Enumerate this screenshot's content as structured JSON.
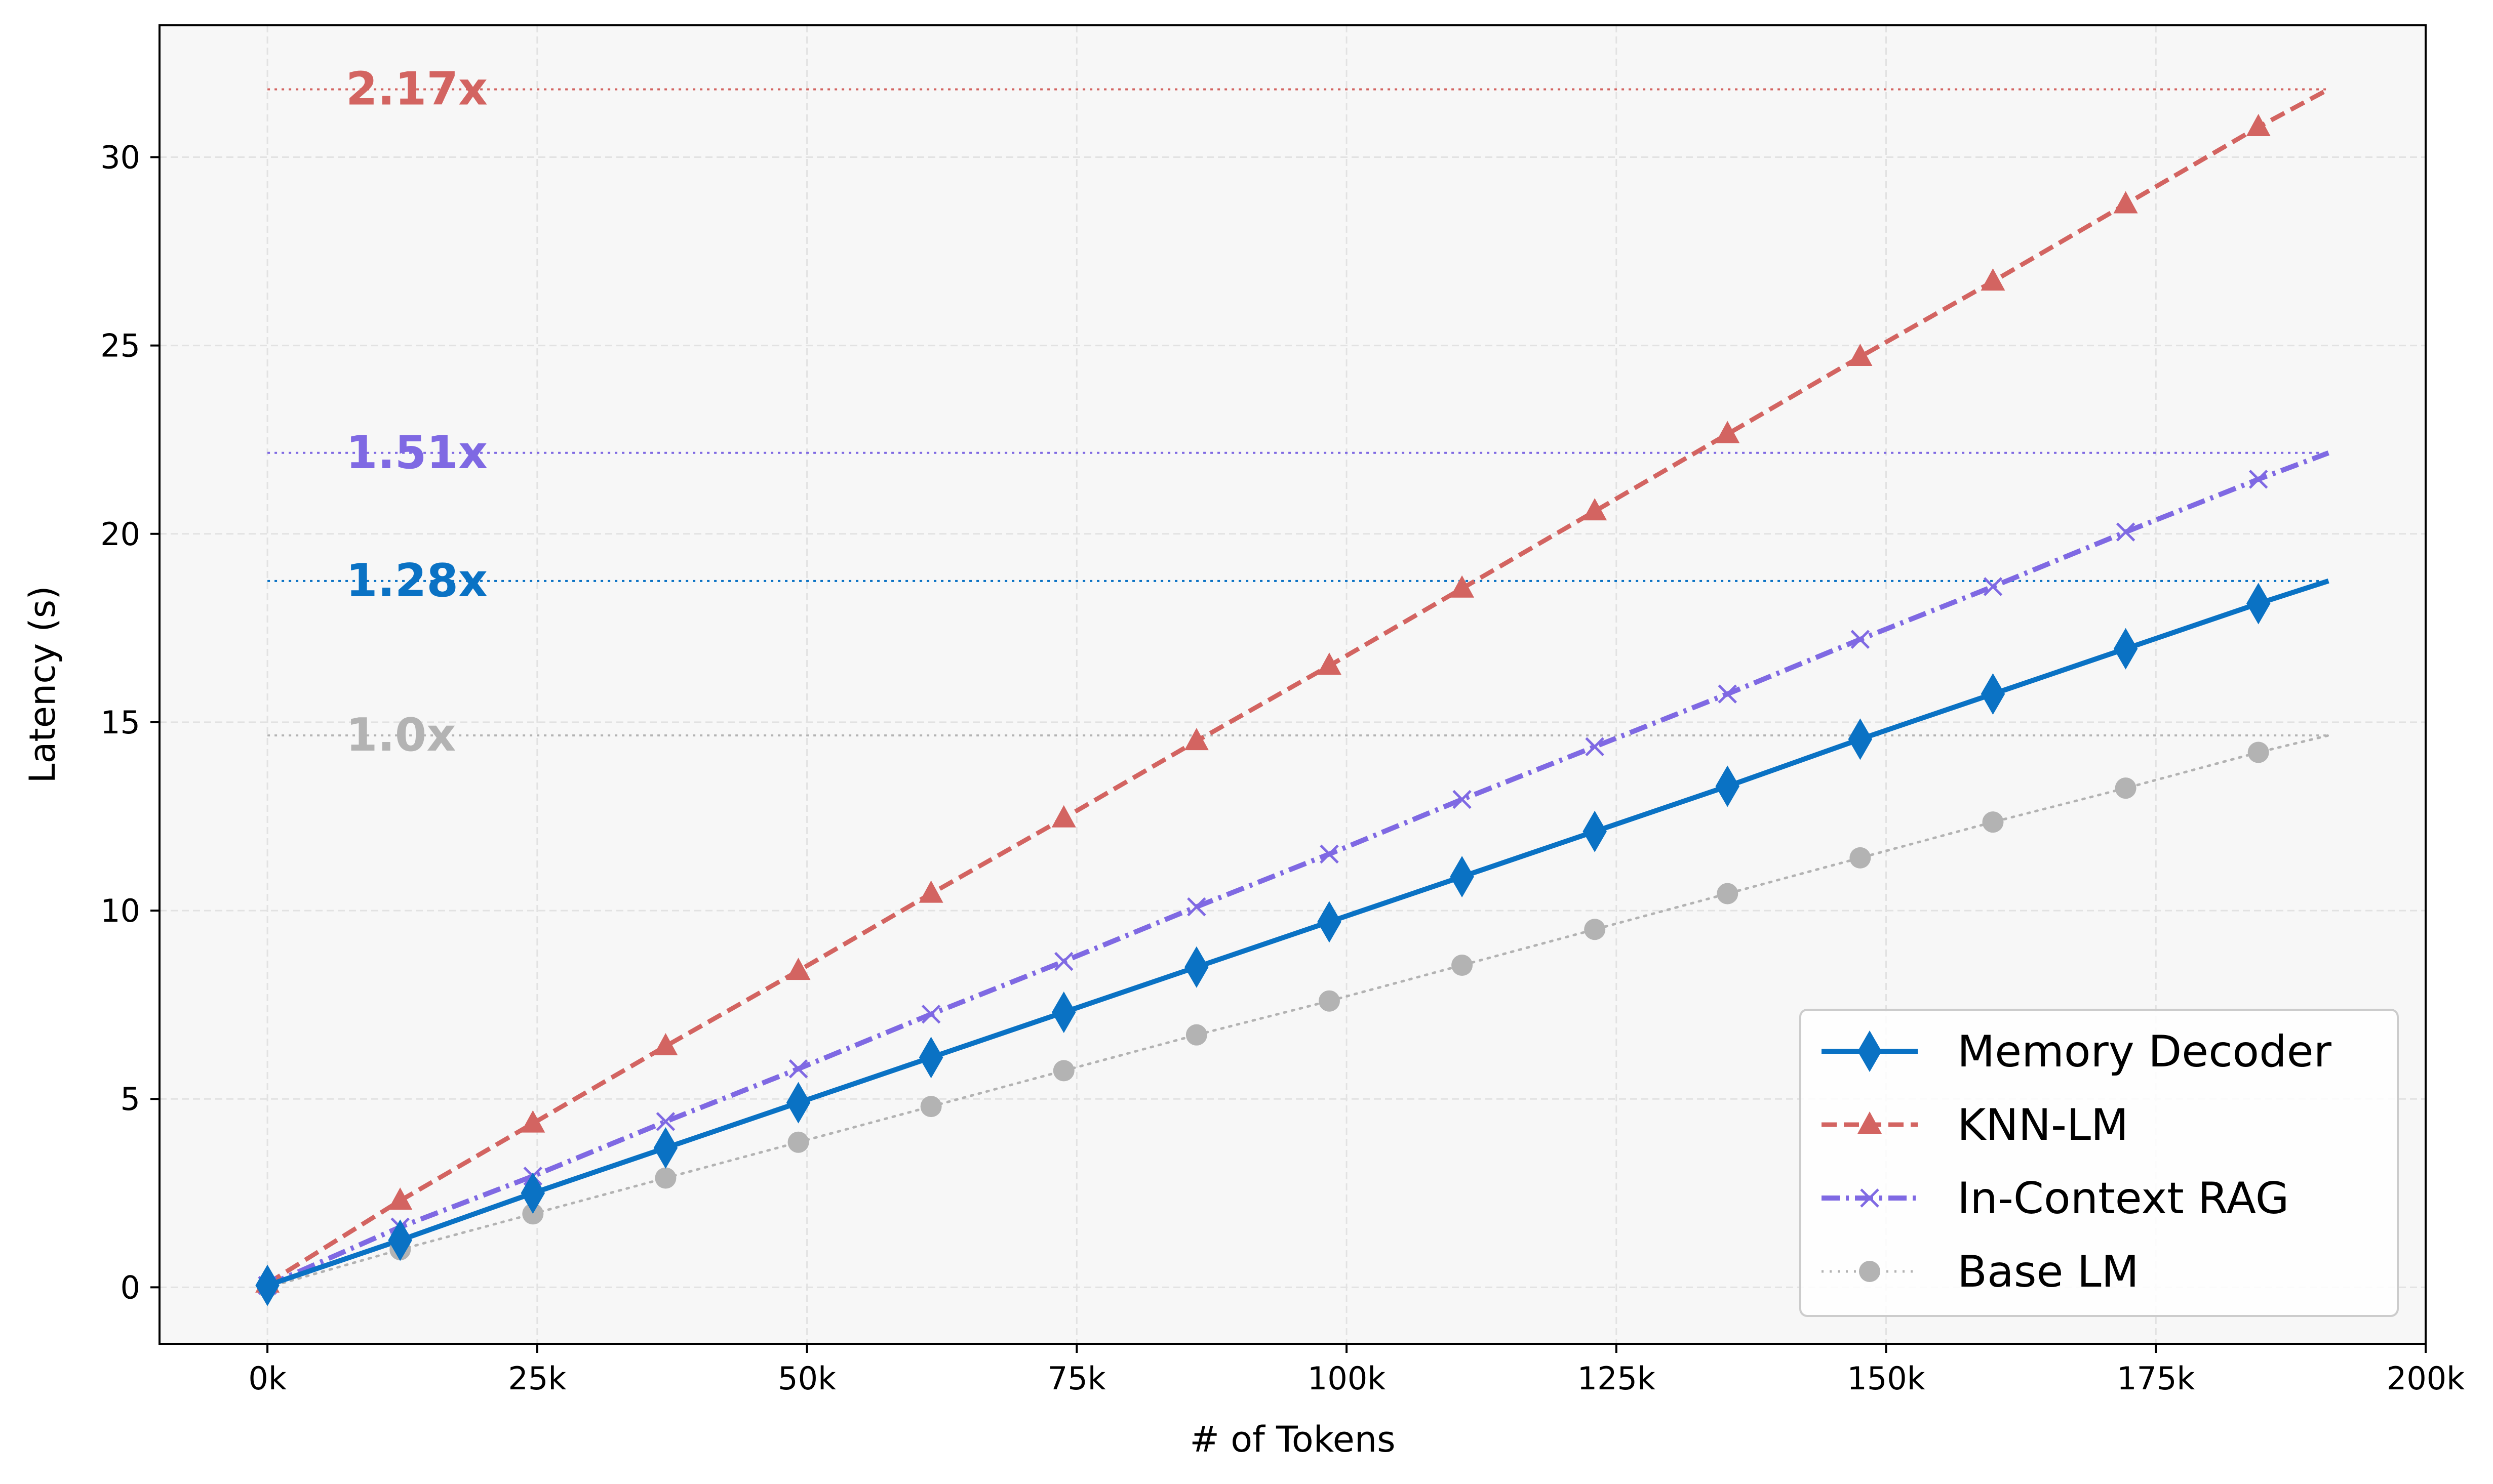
{
  "chart_data": {
    "type": "line",
    "title": "",
    "xlabel": "# of Tokens",
    "ylabel": "Latency (s)",
    "xlim": [
      -10000,
      200000
    ],
    "ylim": [
      -1.5,
      33.5
    ],
    "xticks": [
      0,
      25000,
      50000,
      75000,
      100000,
      125000,
      150000,
      175000,
      200000
    ],
    "xtick_labels": [
      "0k",
      "25k",
      "50k",
      "75k",
      "100k",
      "125k",
      "150k",
      "175k",
      "200k"
    ],
    "yticks": [
      0,
      5,
      10,
      15,
      20,
      25,
      30
    ],
    "ytick_labels": [
      "0",
      "5",
      "10",
      "15",
      "20",
      "25",
      "30"
    ],
    "grid": true,
    "legend_position": "bottom-right",
    "x": [
      0,
      12300,
      24600,
      36900,
      49200,
      61500,
      73800,
      86100,
      98400,
      110700,
      123000,
      135300,
      147600,
      159900,
      172200,
      184500
    ],
    "x_end": 191000,
    "series": [
      {
        "name": "Memory Decoder",
        "color": "#0a72c4",
        "line_style": "solid",
        "marker": "thin-diamond",
        "values": [
          0.05,
          1.25,
          2.5,
          3.7,
          4.9,
          6.1,
          7.3,
          8.5,
          9.7,
          10.9,
          12.1,
          13.3,
          14.55,
          15.75,
          16.95,
          18.15
        ],
        "end_value": 18.75
      },
      {
        "name": "KNN-LM",
        "color": "#d36461",
        "line_style": "dashed",
        "marker": "triangle",
        "values": [
          0.1,
          2.3,
          4.35,
          6.4,
          8.4,
          10.45,
          12.45,
          14.5,
          16.5,
          18.55,
          20.6,
          22.65,
          24.7,
          26.7,
          28.75,
          30.8
        ],
        "end_value": 31.8
      },
      {
        "name": "In-Context RAG",
        "color": "#7f69e3",
        "line_style": "dashdot",
        "marker": "x",
        "values": [
          0.05,
          1.6,
          2.95,
          4.4,
          5.8,
          7.25,
          8.65,
          10.1,
          11.5,
          12.95,
          14.35,
          15.75,
          17.2,
          18.6,
          20.05,
          21.45
        ],
        "end_value": 22.15
      },
      {
        "name": "Base LM",
        "color": "#b3b3b3",
        "line_style": "dotted",
        "marker": "circle",
        "values": [
          0.0,
          1.0,
          1.95,
          2.9,
          3.85,
          4.8,
          5.75,
          6.7,
          7.6,
          8.55,
          9.5,
          10.45,
          11.4,
          12.35,
          13.25,
          14.2
        ],
        "end_value": 14.65
      }
    ],
    "annotations": [
      {
        "text": "2.17x",
        "series": "KNN-LM",
        "y": 31.8,
        "color": "#d36461"
      },
      {
        "text": "1.51x",
        "series": "In-Context RAG",
        "y": 22.15,
        "color": "#7f69e3"
      },
      {
        "text": "1.28x",
        "series": "Memory Decoder",
        "y": 18.75,
        "color": "#0a72c4"
      },
      {
        "text": "1.0x",
        "series": "Base LM",
        "y": 14.65,
        "color": "#b3b3b3"
      }
    ]
  }
}
